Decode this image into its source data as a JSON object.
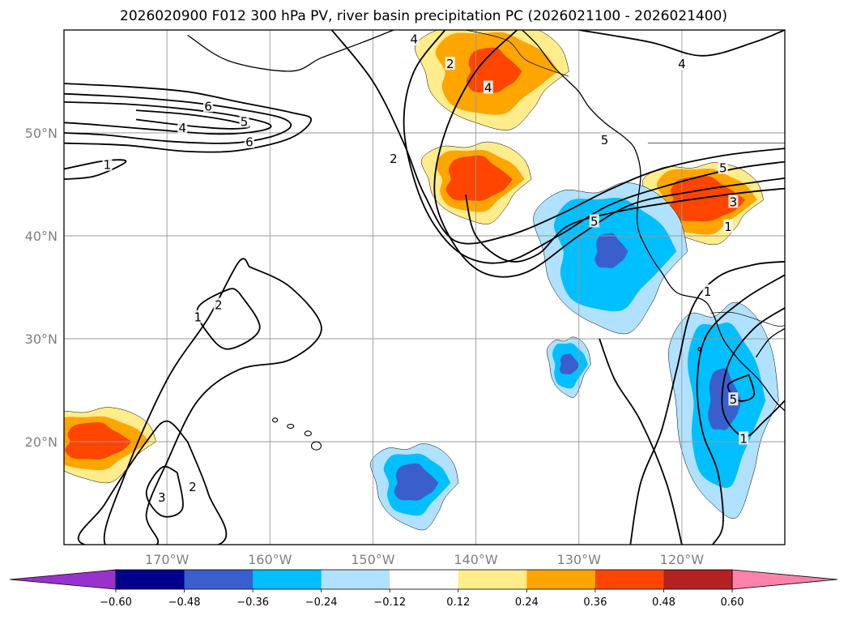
{
  "chart_data": {
    "type": "contour-map",
    "title": "2026020900 F012 300 hPa PV, river basin precipitation PC (2026021100 - 2026021400)",
    "xlabel": "",
    "ylabel": "",
    "xlim": [
      -180,
      -110
    ],
    "ylim": [
      10,
      60
    ],
    "grid": true,
    "lon_ticks": [
      {
        "value": -170,
        "label": "170°W"
      },
      {
        "value": -160,
        "label": "160°W"
      },
      {
        "value": -150,
        "label": "150°W"
      },
      {
        "value": -140,
        "label": "140°W"
      },
      {
        "value": -130,
        "label": "130°W"
      },
      {
        "value": -120,
        "label": "120°W"
      }
    ],
    "lat_ticks": [
      {
        "value": 50,
        "label": "50°N"
      },
      {
        "value": 40,
        "label": "40°N"
      },
      {
        "value": 30,
        "label": "30°N"
      },
      {
        "value": 20,
        "label": "20°N"
      }
    ],
    "colorbar": {
      "levels": [
        -0.72,
        -0.6,
        -0.48,
        -0.36,
        -0.24,
        -0.12,
        0.12,
        0.24,
        0.36,
        0.48,
        0.6,
        0.72
      ],
      "tick_labels": [
        "−0.60",
        "−0.48",
        "−0.36",
        "−0.24",
        "−0.12",
        "0.12",
        "0.24",
        "0.36",
        "0.48",
        "0.60"
      ],
      "colors": [
        "#9932cc",
        "#00008b",
        "#3a5fcd",
        "#00bfff",
        "#b0e2ff",
        "#ffffff",
        "#ffec8b",
        "#ffa500",
        "#ff4500",
        "#b22222",
        "#ff82ab"
      ],
      "extend": "both"
    },
    "pv_contour_labels": [
      {
        "text": "4",
        "lon": -146.0,
        "lat": 59.0
      },
      {
        "text": "2",
        "lon": -142.5,
        "lat": 56.6
      },
      {
        "text": "4",
        "lon": -138.8,
        "lat": 54.3
      },
      {
        "text": "2",
        "lon": -148.0,
        "lat": 47.4
      },
      {
        "text": "5",
        "lon": -128.5,
        "lat": 41.3
      },
      {
        "text": "5",
        "lon": -127.5,
        "lat": 49.2
      },
      {
        "text": "6",
        "lon": -166.0,
        "lat": 52.5
      },
      {
        "text": "5",
        "lon": -162.5,
        "lat": 51.0
      },
      {
        "text": "4",
        "lon": -168.5,
        "lat": 50.4
      },
      {
        "text": "6",
        "lon": -162.0,
        "lat": 49.0
      },
      {
        "text": "1",
        "lon": -175.8,
        "lat": 46.8
      },
      {
        "text": "4",
        "lon": -120.0,
        "lat": 56.6
      },
      {
        "text": "5",
        "lon": -116.0,
        "lat": 46.5
      },
      {
        "text": "3",
        "lon": -115.0,
        "lat": 43.2
      },
      {
        "text": "1",
        "lon": -115.5,
        "lat": 40.8
      },
      {
        "text": "2",
        "lon": -165.0,
        "lat": 33.2
      },
      {
        "text": "1",
        "lon": -167.0,
        "lat": 32.0
      },
      {
        "text": "3",
        "lon": -170.5,
        "lat": 14.5
      },
      {
        "text": "2",
        "lon": -167.5,
        "lat": 15.5
      },
      {
        "text": "1",
        "lon": -117.5,
        "lat": 34.5
      },
      {
        "text": "5",
        "lon": -115.0,
        "lat": 24.0
      },
      {
        "text": "1",
        "lon": -114.0,
        "lat": 20.2
      }
    ],
    "precip_pc_regions": [
      {
        "name": "orange-alaska-panhandle",
        "sign": "positive",
        "levels": [
          0.12,
          0.24,
          0.36
        ],
        "center_lon": -138.5,
        "center_lat": 56.0
      },
      {
        "name": "orange-gulf-alaska",
        "sign": "positive",
        "levels": [
          0.12,
          0.24,
          0.36
        ],
        "center_lon": -140.0,
        "center_lat": 45.5
      },
      {
        "name": "orange-interior-northwest",
        "sign": "positive",
        "levels": [
          0.12,
          0.24,
          0.36
        ],
        "center_lon": -118.0,
        "center_lat": 43.5
      },
      {
        "name": "orange-west-pacific",
        "sign": "positive",
        "levels": [
          0.12,
          0.24,
          0.36
        ],
        "center_lon": -177.0,
        "center_lat": 20.0
      },
      {
        "name": "blue-pacific-northwest",
        "sign": "negative",
        "levels": [
          -0.12,
          -0.24,
          -0.36
        ],
        "center_lon": -127.0,
        "center_lat": 38.5
      },
      {
        "name": "blue-southwest-us",
        "sign": "negative",
        "levels": [
          -0.12,
          -0.24,
          -0.36
        ],
        "center_lon": -116.0,
        "center_lat": 24.0
      },
      {
        "name": "blue-central-pacific",
        "sign": "negative",
        "levels": [
          -0.12,
          -0.24,
          -0.36
        ],
        "center_lon": -146.0,
        "center_lat": 16.0
      },
      {
        "name": "blue-east-pacific",
        "sign": "negative",
        "levels": [
          -0.12,
          -0.24,
          -0.36
        ],
        "center_lon": -131.0,
        "center_lat": 27.5
      }
    ],
    "pv_contour_paths": [
      {
        "name": "contour-pv-jet-2",
        "level": 2,
        "points": [
          [
            -180,
            54.8
          ],
          [
            -174,
            54.5
          ],
          [
            -168,
            54.0
          ],
          [
            -163,
            53.0
          ],
          [
            -158,
            52.0
          ],
          [
            -156,
            51.3
          ],
          [
            -158,
            49.5
          ],
          [
            -163,
            48.3
          ],
          [
            -168,
            48.2
          ],
          [
            -174,
            48.8
          ],
          [
            -180,
            49.0
          ]
        ]
      },
      {
        "name": "contour-pv-jet-4",
        "level": 4,
        "points": [
          [
            -180,
            53.8
          ],
          [
            -174,
            53.5
          ],
          [
            -168,
            53.0
          ],
          [
            -163,
            52.3
          ],
          [
            -159,
            51.5
          ],
          [
            -158,
            50.6
          ],
          [
            -160,
            49.6
          ],
          [
            -164,
            49.0
          ],
          [
            -170,
            49.2
          ],
          [
            -176,
            49.8
          ],
          [
            -180,
            50.0
          ]
        ]
      },
      {
        "name": "contour-pv-jet-5",
        "level": 5,
        "points": [
          [
            -180,
            53.0
          ],
          [
            -174,
            52.8
          ],
          [
            -168,
            52.3
          ],
          [
            -163,
            51.6
          ],
          [
            -160,
            50.8
          ],
          [
            -161,
            50.2
          ],
          [
            -165,
            49.9
          ],
          [
            -171,
            50.3
          ],
          [
            -177,
            50.8
          ],
          [
            -180,
            51.0
          ]
        ]
      },
      {
        "name": "contour-pv-jet-6",
        "level": 6,
        "points": [
          [
            -173,
            52.2
          ],
          [
            -168,
            51.8
          ],
          [
            -164,
            51.2
          ],
          [
            -162,
            50.6
          ],
          [
            -164,
            50.4
          ],
          [
            -168,
            50.7
          ],
          [
            -173,
            51.3
          ]
        ]
      },
      {
        "name": "contour-pv-wave-1",
        "level": 1,
        "points": [
          [
            -180,
            46.5
          ],
          [
            -176,
            47.3
          ],
          [
            -174,
            47.2
          ],
          [
            -177,
            45.8
          ],
          [
            -180,
            45.5
          ]
        ]
      },
      {
        "name": "contour-pv-trough-2",
        "level": 2,
        "points": [
          [
            -154,
            60
          ],
          [
            -150,
            55
          ],
          [
            -147,
            49
          ],
          [
            -145,
            44
          ],
          [
            -142,
            39.5
          ],
          [
            -137,
            40
          ],
          [
            -132,
            42
          ],
          [
            -127,
            44.5
          ],
          [
            -122,
            46.5
          ],
          [
            -116,
            47.8
          ],
          [
            -110,
            48.5
          ]
        ]
      },
      {
        "name": "contour-pv-trough-4",
        "level": 4,
        "points": [
          [
            -143,
            60
          ],
          [
            -146,
            56
          ],
          [
            -147,
            51
          ],
          [
            -146,
            45.5
          ],
          [
            -144,
            41
          ],
          [
            -141,
            38
          ],
          [
            -137,
            37.5
          ],
          [
            -132,
            40
          ],
          [
            -127,
            43
          ],
          [
            -121,
            45
          ],
          [
            -115,
            46.5
          ],
          [
            -110,
            47.2
          ]
        ]
      },
      {
        "name": "contour-pv-trough-5",
        "level": 5,
        "points": [
          [
            -136,
            60
          ],
          [
            -140,
            56
          ],
          [
            -143,
            50
          ],
          [
            -144,
            44
          ],
          [
            -142,
            39
          ],
          [
            -139,
            36.3
          ],
          [
            -135,
            36.5
          ],
          [
            -130,
            40
          ],
          [
            -125,
            43
          ],
          [
            -119,
            44.3
          ],
          [
            -113,
            45.2
          ],
          [
            -110,
            45.6
          ]
        ]
      },
      {
        "name": "contour-pv-trough-6",
        "level": 6,
        "points": [
          [
            -141,
            44
          ],
          [
            -140,
            40
          ],
          [
            -137,
            37.6
          ],
          [
            -134,
            38.2
          ],
          [
            -131,
            41
          ],
          [
            -126,
            42.4
          ],
          [
            -120,
            43.4
          ],
          [
            -114,
            44.2
          ],
          [
            -110,
            44.6
          ]
        ]
      },
      {
        "name": "contour-pv-ne-4",
        "level": 4,
        "points": [
          [
            -130,
            60
          ],
          [
            -123,
            58.8
          ],
          [
            -118,
            57.5
          ],
          [
            -113,
            58.8
          ],
          [
            -110,
            60
          ]
        ]
      },
      {
        "name": "contour-pv-ring-1",
        "level": 1,
        "points": [
          [
            -162,
            37
          ],
          [
            -158,
            35
          ],
          [
            -155,
            31
          ],
          [
            -158,
            28
          ],
          [
            -163,
            27
          ],
          [
            -167,
            24
          ],
          [
            -170,
            18
          ],
          [
            -172,
            13
          ],
          [
            -171,
            10
          ],
          [
            -176,
            10
          ],
          [
            -174,
            17
          ],
          [
            -170,
            26
          ],
          [
            -166,
            32
          ],
          [
            -163,
            37.5
          ],
          [
            -162,
            37
          ]
        ]
      },
      {
        "name": "contour-pv-ring-2",
        "level": 2,
        "points": [
          [
            -163,
            34.5
          ],
          [
            -161,
            31
          ],
          [
            -164,
            29
          ],
          [
            -166,
            30.5
          ],
          [
            -167,
            33
          ],
          [
            -164,
            34.8
          ],
          [
            -163,
            34.5
          ]
        ]
      },
      {
        "name": "contour-pv-ring-3",
        "level": 3,
        "points": [
          [
            -169,
            17
          ],
          [
            -168.5,
            13.5
          ],
          [
            -170.5,
            12.8
          ],
          [
            -172,
            15
          ],
          [
            -170.5,
            17.5
          ],
          [
            -169,
            17
          ]
        ]
      },
      {
        "name": "contour-pv-south-2",
        "level": 2,
        "points": [
          [
            -168,
            20
          ],
          [
            -166,
            15
          ],
          [
            -165,
            10
          ],
          [
            -178,
            10
          ],
          [
            -176,
            14
          ],
          [
            -172,
            20
          ],
          [
            -170,
            22
          ],
          [
            -168,
            20
          ]
        ]
      },
      {
        "name": "contour-pv-baja-1",
        "level": 1,
        "points": [
          [
            -110,
            36.2
          ],
          [
            -114,
            33.8
          ],
          [
            -117.5,
            30.5
          ],
          [
            -118.5,
            26
          ],
          [
            -118,
            21
          ],
          [
            -116.5,
            17
          ],
          [
            -116,
            12
          ],
          [
            -117,
            10
          ]
        ]
      },
      {
        "name": "contour-pv-baja-2",
        "level": 2,
        "points": [
          [
            -110,
            33
          ],
          [
            -113,
            31
          ],
          [
            -115.5,
            27.5
          ],
          [
            -116,
            23
          ],
          [
            -114,
            20.5
          ],
          [
            -112,
            22
          ],
          [
            -110,
            24
          ]
        ]
      },
      {
        "name": "contour-pv-baja-5",
        "level": 5,
        "points": [
          [
            -113.5,
            26.5
          ],
          [
            -113,
            24.5
          ],
          [
            -114.5,
            24
          ],
          [
            -115.5,
            25.5
          ],
          [
            -113.5,
            26.5
          ]
        ]
      },
      {
        "name": "contour-pv-baja-outer",
        "level": 1,
        "points": [
          [
            -120,
            10
          ],
          [
            -121.5,
            16
          ],
          [
            -124,
            22
          ],
          [
            -126.5,
            26
          ],
          [
            -128,
            30
          ]
        ]
      },
      {
        "name": "contour-pv-baja-outer-b",
        "level": 1,
        "points": [
          [
            -125,
            10
          ],
          [
            -124,
            16
          ],
          [
            -122,
            21
          ],
          [
            -120.5,
            27
          ],
          [
            -119,
            33
          ],
          [
            -116.5,
            36
          ],
          [
            -113,
            37.2
          ],
          [
            -110,
            37.5
          ]
        ]
      }
    ]
  }
}
